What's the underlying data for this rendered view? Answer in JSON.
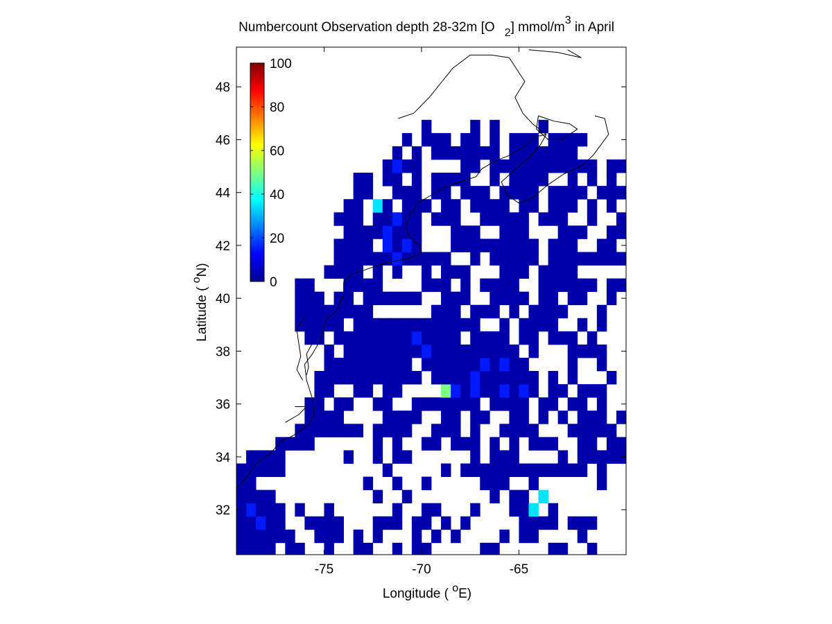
{
  "chart_data": {
    "type": "heatmap",
    "title_parts": {
      "pre": "Numbercount Observation depth 28-32m [O",
      "sub": "2",
      "mid": "] mmol/m",
      "sup": "3",
      "post": " in April"
    },
    "xlabel_parts": {
      "pre": "Longitude ( ",
      "sup": "o",
      "post": "E)"
    },
    "ylabel_parts": {
      "pre": "Latitude ( ",
      "sup": "o",
      "post": "N)"
    },
    "xlim": [
      -79.5,
      -59.5
    ],
    "ylim": [
      30.3,
      49.5
    ],
    "x_ticks": [
      -75,
      -70,
      -65
    ],
    "y_ticks": [
      32,
      34,
      36,
      38,
      40,
      42,
      44,
      46,
      48
    ],
    "colorbar": {
      "min": 0,
      "max": 100,
      "ticks": [
        0,
        20,
        40,
        60,
        80,
        100
      ],
      "colormap": "jet"
    },
    "grid": false,
    "cell_size_deg": 0.5,
    "lon0": -79.5,
    "lat0": 30.25,
    "rows": [
      "",
      "",
      "",
      "",
      "",
      "",
      "",
      "",
      "",
      "",
      "",
      "",
      "",
      "",
      "",
      "",
      "",
      "",
      "",
      "",
      "",
      "",
      "",
      "",
      "",
      "",
      "",
      "",
      "",
      "",
      "",
      "",
      "",
      "",
      "",
      "",
      "",
      "",
      ""
    ],
    "grid_values": [
      "1111.11..1..11..1.11.....11.....11..1...",
      "111111..111.1.1...1.1.1....1.11....1....",
      "11211..1111...111.11.1.1.....1111.111...",
      "12111.1..1......1..11...1...113.1.......",
      "1111..........1..1........1.11.3.........",
      "11...........1..1..1.....111..1......1...",
      "11111..........1.....1.1111111111111.1..",
      ".1111......1..1.11......1.111....1.11111.",
      "....1111......1.1..11.111.1.1.111..11.11.",
      "......1111111.1111..111.1..1111...11111..",
      ".......1111....1111..11.11..11.1.1.111.1.",
      ".......11.11..11..1111111.1111.11.11.1..1",
      "........11..11.11....9212112121.11.111..1",
      "........11111111111.11112111111.1.1...1..",
      ".........111111111.11111121211....1..1..1",
      ".........1.111111112111111111.1...1111...",
      ".......11.1111111121111.1111.11.111.1....",
      "......11111.1111111111111..1.1111..1.1..1",
      "......11111111......111.111.1.1111...1...",
      "......111.11.111111..111..1111.11.11..1..",
      "......11...1111....111.1.1111..111111.11.",
      ".........1111.1.1..1.111...111.1111......",
      "..........111111211111..1.11111.11111111.",
      "..........1111.2121...111111111.111..11..",
      "...........11112111...111..111...111..111",
      "..........111.11211.111..11111.111..1..1.",
      "...........11.31.111.11.1111.11.111.1.1..",
      "............11..111.11.111.1111.1111.1111",
      "............11.11.1.1111..1.1111..1.1.1.1",
      "...............1211....11.11111111111.111",
      "................1.1.1111111.1111111......",
      ".................1.111.11.1.111.1111.....",
      "...................1....1.1....1.........",
      "........................................",
      "........................................",
      "........................................",
      "........................................",
      "........................................",
      "........................................"
    ]
  }
}
